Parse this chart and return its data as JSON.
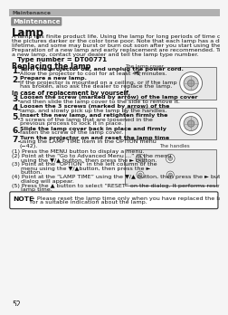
{
  "page_number": "52",
  "bg_color": "#f5f5f5",
  "header_bar_color": "#b0b0b0",
  "header_text": "Maintenance",
  "header_text_color": "#444444",
  "section_badge_text": "Maintenance",
  "section_badge_bg": "#888888",
  "section_badge_text_color": "#ffffff",
  "title": "Lamp",
  "intro_lines": [
    "A lamp has finite product life. Using the lamp for long periods of time could cause",
    "the pictures darker or the color tone poor. Note that each lamp has a different",
    "lifetime, and some may burst or burn out soon after you start using them.",
    "Preparation of a new lamp and early replacement are recommended. To prepare",
    "a new lamp, contact your dealer and tell the lamp type number."
  ],
  "type_number_label": "Type number = DT00771",
  "replacing_header": "Replacing the lamp",
  "lamp_cover_label": "The lamp cover",
  "handles_label": "The handles",
  "steps": [
    {
      "num": "1",
      "lines": [
        {
          "bold": true,
          "text": "Turn the projector off, and unplug the power cord."
        },
        {
          "bold": false,
          "text": "Allow the projector to cool for at least 45 minutes."
        }
      ]
    },
    {
      "num": "2",
      "lines": [
        {
          "bold": true,
          "text": "Prepare a new lamp."
        },
        {
          "bold": false,
          "text": "If the projector is mounted on a ceiling, or if the lamp"
        },
        {
          "bold": false,
          "text": "has broken, also ask the dealer to replace the lamp."
        }
      ]
    },
    {
      "num": "",
      "subheader": true,
      "lines": [
        {
          "bold": true,
          "text": "In case of replacement by yourself,"
        }
      ]
    },
    {
      "num": "3",
      "lines": [
        {
          "bold": true,
          "text": "Loosen the screw (marked by arrow) of the lamp cover"
        },
        {
          "bold": false,
          "text": "and then slide the lamp cover to the side to remove it."
        }
      ]
    },
    {
      "num": "4",
      "lines": [
        {
          "bold": true,
          "text": "Loosen the 3 screws (marked by arrow) of the"
        },
        {
          "bold": false,
          "text": "lamp, and slowly pick up the lamp by the handles."
        }
      ]
    },
    {
      "num": "5",
      "lines": [
        {
          "bold": true,
          "text": "Insert the new lamp, and retighten firmly the"
        },
        {
          "bold": false,
          "text": "3 screws of the lamp that are loosened in the"
        },
        {
          "bold": false,
          "text": "previous process to lock it in place."
        }
      ]
    },
    {
      "num": "6",
      "lines": [
        {
          "bold": true,
          "text": "Slide the lamp cover back in place and firmly"
        },
        {
          "bold": false,
          "text": "fasten the screw of the lamp cover."
        }
      ]
    },
    {
      "num": "7",
      "lines": [
        {
          "bold": true,
          "text": "Turn the projector on and reset the lamp time"
        },
        {
          "bold": false,
          "text": "using the LAMP TIME item in the OPTION menu"
        },
        {
          "bold": false,
          "text": "(−42)."
        }
      ]
    }
  ],
  "numbered_steps": [
    [
      "(1) Press the MENU button to display a menu."
    ],
    [
      "(2) Point at the “Go to Advanced Menu …” in the menu",
      "     using the ▼/▲ button, then press the ► button."
    ],
    [
      "(3) Point at the “OPTION” in the left column of the",
      "     menu using the ▼/▲button, then press the ►",
      "     button."
    ],
    [
      "(4) Point at the “LAMP TIME” using the ▼/▲ button, then press the ► button. A",
      "     dialog will appear."
    ],
    [
      "(5) Press the ▲ button to select “RESET” on the dialog. It performs resetting the",
      "     lamp time."
    ]
  ],
  "note_bold": "NOTE",
  "note_text_lines": [
    " • Please reset the lamp time only when you have replaced the lamp,",
    "for a suitable indication about the lamp."
  ],
  "note_border_color": "#333333",
  "note_bg_color": "#ffffff",
  "text_color": "#111111",
  "body_fs": 4.6,
  "small_fs": 4.3
}
